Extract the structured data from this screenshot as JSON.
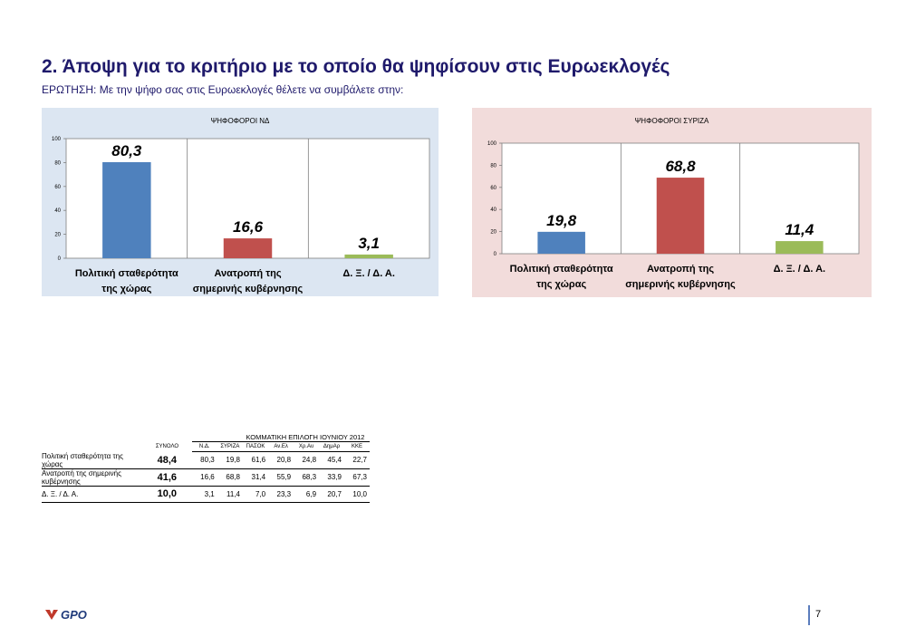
{
  "page": {
    "title": "2. Άποψη για το κριτήριο με το οποίο θα ψηφίσουν στις Ευρωεκλογές",
    "question": "ΕΡΩΤΗΣΗ: Με την ψήφο σας στις Ευρωεκλογές θέλετε να συμβάλετε στην:",
    "page_number": "7",
    "logo_text": "GPO"
  },
  "chart_data": [
    {
      "type": "bar",
      "title": "ΨΗΦΟΦΟΡΟΙ ΝΔ",
      "categories": [
        "Πολιτική σταθερότητα της χώρας",
        "Ανατροπή της σημερινής κυβέρνησης",
        "Δ. Ξ. / Δ. Α."
      ],
      "category_lines": [
        [
          "Πολιτική σταθερότητα",
          "της χώρας"
        ],
        [
          "Ανατροπή της",
          "σημερινής κυβέρνησης"
        ],
        [
          "Δ. Ξ. / Δ. Α."
        ]
      ],
      "values": [
        80.3,
        16.6,
        3.1
      ],
      "value_labels": [
        "80,3",
        "16,6",
        "3,1"
      ],
      "colors": [
        "#4f81bd",
        "#c0504d",
        "#9bbb59"
      ],
      "ylim": [
        0,
        100
      ],
      "yticks": [
        0,
        20,
        40,
        60,
        80,
        100
      ],
      "background": "#dce6f2",
      "grid": false
    },
    {
      "type": "bar",
      "title": "ΨΗΦΟΦΟΡΟΙ ΣΥΡΙΖΑ",
      "categories": [
        "Πολιτική σταθερότητα της χώρας",
        "Ανατροπή της σημερινής κυβέρνησης",
        "Δ. Ξ. / Δ. Α."
      ],
      "category_lines": [
        [
          "Πολιτική σταθερότητα",
          "της χώρας"
        ],
        [
          "Ανατροπή της",
          "σημερινής κυβέρνησης"
        ],
        [
          "Δ. Ξ. / Δ. Α."
        ]
      ],
      "values": [
        19.8,
        68.8,
        11.4
      ],
      "value_labels": [
        "19,8",
        "68,8",
        "11,4"
      ],
      "colors": [
        "#4f81bd",
        "#c0504d",
        "#9bbb59"
      ],
      "ylim": [
        0,
        100
      ],
      "yticks": [
        0,
        20,
        40,
        60,
        80,
        100
      ],
      "background": "#f2dcdb",
      "grid": false
    },
    {
      "type": "table",
      "supertitle": "ΚΟΜΜΑΤΙΚΗ ΕΠΙΛΟΓΗ ΙΟΥΝΙΟΥ 2012",
      "total_header": "ΣΥΝΟΛΟ",
      "columns": [
        "Ν.Δ.",
        "ΣΥΡΙΖΑ",
        "ΠΑΣΟΚ",
        "Αν.Ελ",
        "Χρ.Αυ",
        "ΔημΑρ",
        "ΚΚΕ"
      ],
      "rows": [
        {
          "label": "Πολιτική σταθερότητα της χώρας",
          "total": "48,4",
          "values": [
            "80,3",
            "19,8",
            "61,6",
            "20,8",
            "24,8",
            "45,4",
            "22,7"
          ]
        },
        {
          "label": "Ανατροπή της σημερινής κυβέρνησης",
          "total": "41,6",
          "values": [
            "16,6",
            "68,8",
            "31,4",
            "55,9",
            "68,3",
            "33,9",
            "67,3"
          ]
        },
        {
          "label": "Δ. Ξ. / Δ. Α.",
          "total": "10,0",
          "values": [
            "3,1",
            "11,4",
            "7,0",
            "23,3",
            "6,9",
            "20,7",
            "10,0"
          ]
        }
      ]
    }
  ]
}
